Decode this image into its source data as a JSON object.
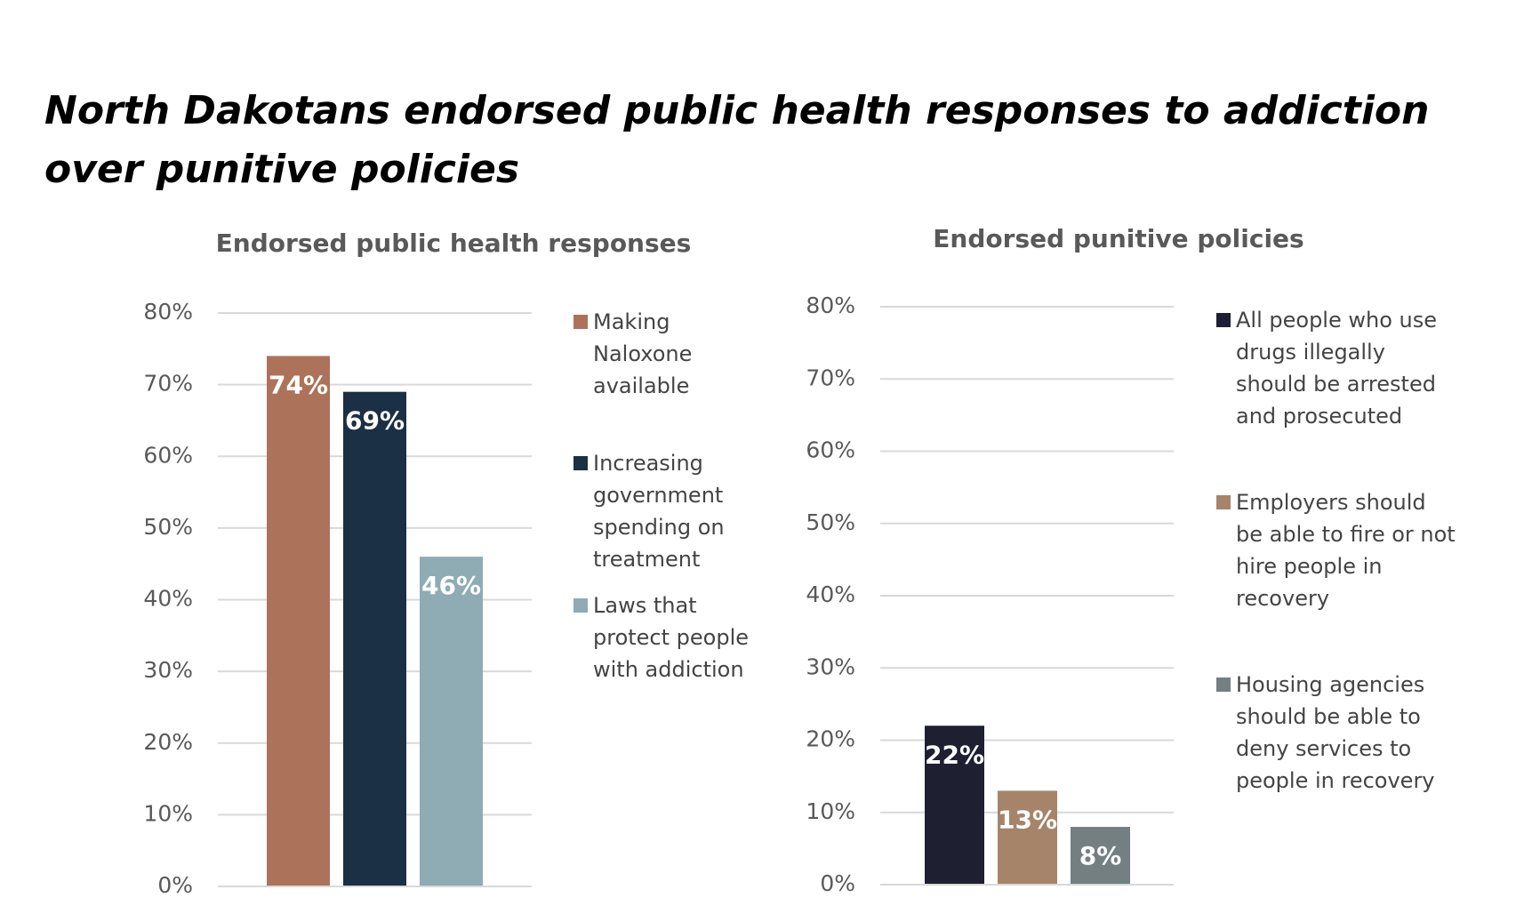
{
  "title": "North Dakotans endorsed public health responses to addiction over punitive policies",
  "chart_data": [
    {
      "type": "bar",
      "title": "Endorsed public health responses",
      "series": [
        {
          "name": "Making Naloxone available",
          "color": "#ad735a",
          "values": [
            74
          ],
          "value_labels": [
            "74%"
          ]
        },
        {
          "name": "Increasing government spending on treatment",
          "color": "#1b2f45",
          "values": [
            69
          ],
          "value_labels": [
            "69%"
          ]
        },
        {
          "name": "Laws that protect people with addiction",
          "color": "#8fabb4",
          "values": [
            46
          ],
          "value_labels": [
            "46%"
          ]
        }
      ],
      "ylim": [
        0,
        80
      ],
      "yticks": [
        {
          "value": 0,
          "label": "0%"
        },
        {
          "value": 10,
          "label": "10%"
        },
        {
          "value": 20,
          "label": "20%"
        },
        {
          "value": 30,
          "label": "30%"
        },
        {
          "value": 40,
          "label": "40%"
        },
        {
          "value": 50,
          "label": "50%"
        },
        {
          "value": 60,
          "label": "60%"
        },
        {
          "value": 70,
          "label": "70%"
        },
        {
          "value": 80,
          "label": "80%"
        }
      ],
      "grid": true,
      "legend": "right"
    },
    {
      "type": "bar",
      "title": "Endorsed punitive policies",
      "series": [
        {
          "name": "All people who use drugs illegally should be arrested and prosecuted",
          "color": "#1e2032",
          "values": [
            22
          ],
          "value_labels": [
            "22%"
          ]
        },
        {
          "name": "Employers should be able to fire or not hire people in recovery",
          "color": "#a6846a",
          "values": [
            13
          ],
          "value_labels": [
            "13%"
          ]
        },
        {
          "name": "Housing agencies should be able to deny services to people in recovery",
          "color": "#737f81",
          "values": [
            8
          ],
          "value_labels": [
            "8%"
          ]
        }
      ],
      "ylim": [
        0,
        80
      ],
      "yticks": [
        {
          "value": 0,
          "label": "0%"
        },
        {
          "value": 10,
          "label": "10%"
        },
        {
          "value": 20,
          "label": "20%"
        },
        {
          "value": 30,
          "label": "30%"
        },
        {
          "value": 40,
          "label": "40%"
        },
        {
          "value": 50,
          "label": "50%"
        },
        {
          "value": 60,
          "label": "60%"
        },
        {
          "value": 70,
          "label": "70%"
        },
        {
          "value": 80,
          "label": "80%"
        }
      ],
      "grid": true,
      "legend": "right"
    }
  ]
}
